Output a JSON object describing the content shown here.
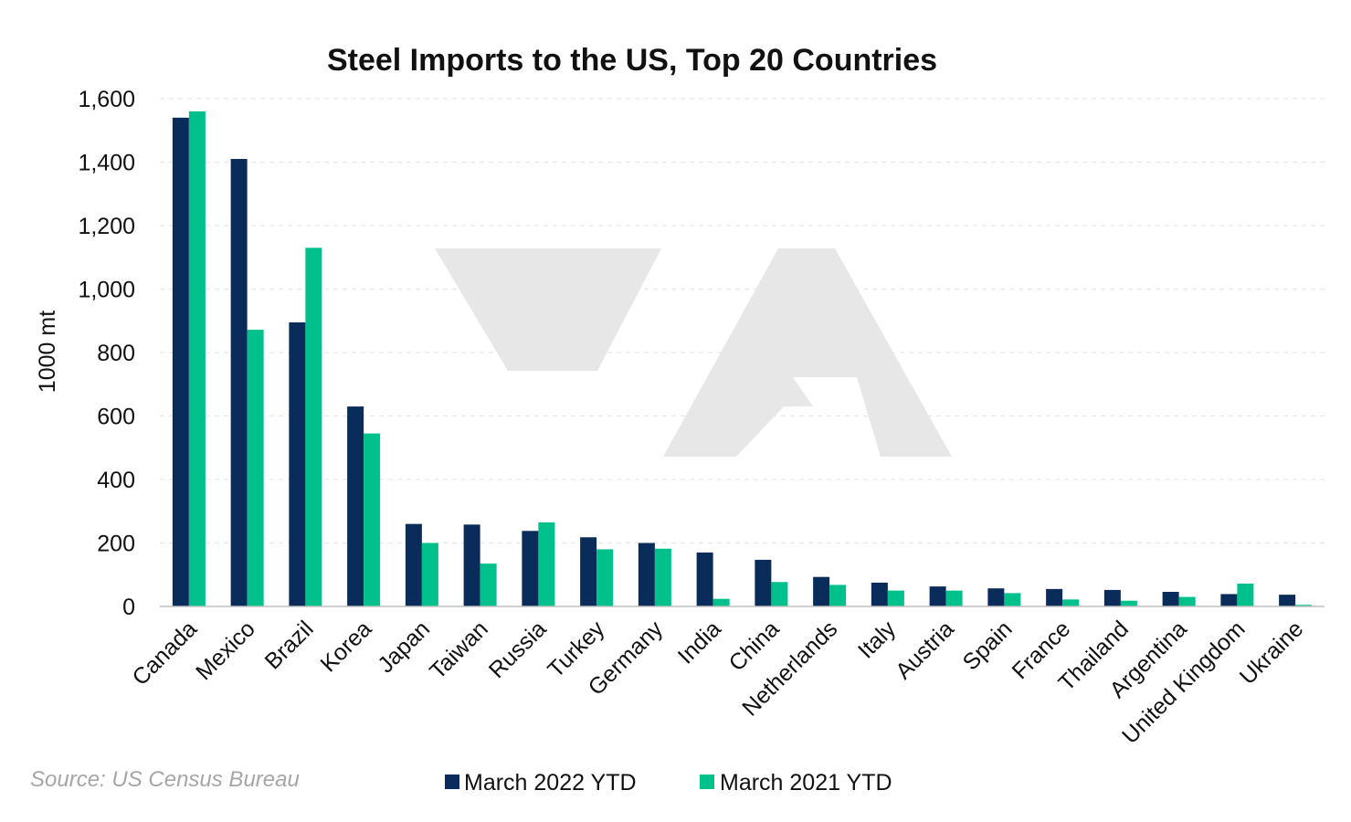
{
  "chart_data": {
    "type": "bar",
    "title": "Steel Imports to the US, Top 20 Countries",
    "ylabel": "1000 mt",
    "xlabel": "",
    "ylim": [
      0,
      1600
    ],
    "yticks": [
      0,
      200,
      400,
      600,
      800,
      1000,
      1200,
      1400,
      1600
    ],
    "ytick_labels": [
      "0",
      "200",
      "400",
      "600",
      "800",
      "1,000",
      "1,200",
      "1,400",
      "1,600"
    ],
    "grid": true,
    "legend_position": "bottom",
    "categories": [
      "Canada",
      "Mexico",
      "Brazil",
      "Korea",
      "Japan",
      "Taiwan",
      "Russia",
      "Turkey",
      "Germany",
      "India",
      "China",
      "Netherlands",
      "Italy",
      "Austria",
      "Spain",
      "France",
      "Thailand",
      "Argentina",
      "United Kingdom",
      "Ukraine"
    ],
    "series": [
      {
        "name": "March 2022 YTD",
        "color": "#0a2c5a",
        "values": [
          1540,
          1410,
          895,
          630,
          260,
          258,
          238,
          218,
          200,
          170,
          147,
          93,
          75,
          63,
          57,
          55,
          52,
          46,
          39,
          37
        ]
      },
      {
        "name": "March 2021 YTD",
        "color": "#00c08b",
        "values": [
          1560,
          872,
          1130,
          545,
          200,
          135,
          265,
          180,
          182,
          24,
          77,
          68,
          50,
          50,
          42,
          22,
          18,
          30,
          72,
          5
        ]
      }
    ],
    "source": "Source: US Census Bureau"
  },
  "colors": {
    "gridline": "#e6e6e6",
    "axis": "#bfbfbf",
    "watermark": "#e7e7e7"
  }
}
